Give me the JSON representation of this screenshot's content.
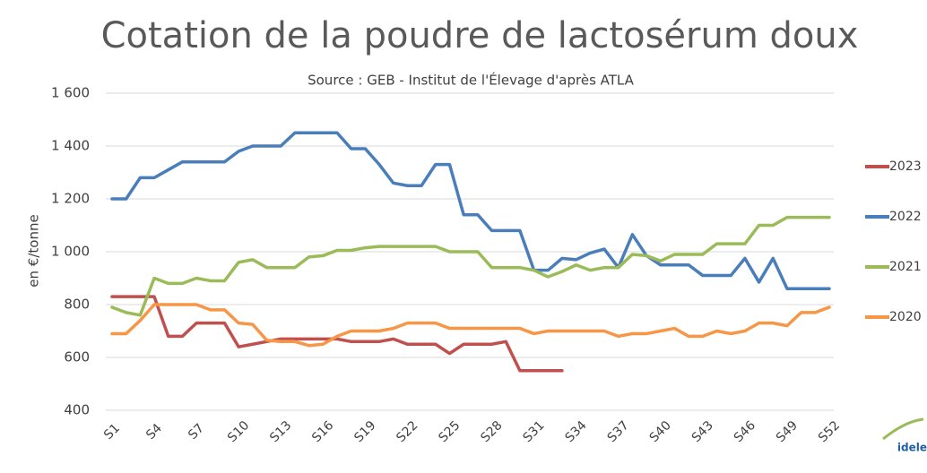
{
  "chart_data": {
    "type": "line",
    "title": "Cotation de la poudre de lactosérum doux",
    "subtitle": "Source : GEB - Institut de l'Élevage d'après ATLA",
    "y_label": "en €/tonne",
    "logo_text": "idele",
    "categories": [
      "S1",
      null,
      null,
      "S4",
      null,
      null,
      "S7",
      null,
      null,
      "S10",
      null,
      null,
      "S13",
      null,
      null,
      "S16",
      null,
      null,
      "S19",
      null,
      null,
      "S22",
      null,
      null,
      "S25",
      null,
      null,
      "S28",
      null,
      null,
      "S31",
      null,
      null,
      "S34",
      null,
      null,
      "S37",
      null,
      null,
      "S40",
      null,
      null,
      "S43",
      null,
      null,
      "S46",
      null,
      null,
      "S49",
      null,
      null,
      "S52"
    ],
    "ylim": [
      400,
      1600
    ],
    "yticks": [
      400,
      600,
      800,
      {
        "value": 1000,
        "label": "1 000"
      },
      {
        "value": 1200,
        "label": "1 200"
      },
      {
        "value": 1400,
        "label": "1 400"
      },
      {
        "value": 1600,
        "label": "1 600"
      }
    ],
    "grid": true,
    "legend": "right",
    "series": [
      {
        "name": "2023",
        "color": "#c0504d",
        "values": [
          830,
          830,
          830,
          830,
          680,
          680,
          730,
          730,
          730,
          640,
          650,
          660,
          670,
          670,
          670,
          670,
          670,
          660,
          660,
          660,
          670,
          650,
          650,
          650,
          615,
          650,
          650,
          650,
          660,
          550,
          550,
          550,
          550,
          null,
          null,
          null,
          null,
          null,
          null,
          null,
          null,
          null,
          null,
          null,
          null,
          null,
          null,
          null,
          null,
          null,
          null,
          null
        ]
      },
      {
        "name": "2022",
        "color": "#4a7ebb",
        "values": [
          1200,
          1200,
          1280,
          1280,
          1310,
          1340,
          1340,
          1340,
          1340,
          1380,
          1400,
          1400,
          1400,
          1450,
          1450,
          1450,
          1450,
          1390,
          1390,
          1330,
          1260,
          1250,
          1250,
          1330,
          1330,
          1140,
          1140,
          1080,
          1080,
          1080,
          930,
          930,
          975,
          970,
          995,
          1010,
          940,
          1065,
          985,
          950,
          950,
          950,
          910,
          910,
          910,
          975,
          885,
          975,
          860,
          860,
          860,
          860
        ]
      },
      {
        "name": "2021",
        "color": "#9bbb59",
        "values": [
          790,
          770,
          760,
          900,
          880,
          880,
          900,
          890,
          890,
          960,
          970,
          940,
          940,
          940,
          980,
          985,
          1005,
          1005,
          1015,
          1020,
          1020,
          1020,
          1020,
          1020,
          1000,
          1000,
          1000,
          940,
          940,
          940,
          930,
          905,
          925,
          950,
          930,
          940,
          940,
          990,
          985,
          965,
          990,
          990,
          990,
          1030,
          1030,
          1030,
          1100,
          1100,
          1130,
          1130,
          1130,
          1130
        ]
      },
      {
        "name": "2020",
        "color": "#f79646",
        "values": [
          690,
          690,
          740,
          800,
          800,
          800,
          800,
          780,
          780,
          730,
          725,
          665,
          660,
          660,
          645,
          650,
          680,
          700,
          700,
          700,
          710,
          730,
          730,
          730,
          710,
          710,
          710,
          710,
          710,
          710,
          690,
          700,
          700,
          700,
          700,
          700,
          680,
          690,
          690,
          700,
          710,
          680,
          680,
          700,
          690,
          700,
          730,
          730,
          720,
          770,
          770,
          790
        ]
      }
    ]
  }
}
